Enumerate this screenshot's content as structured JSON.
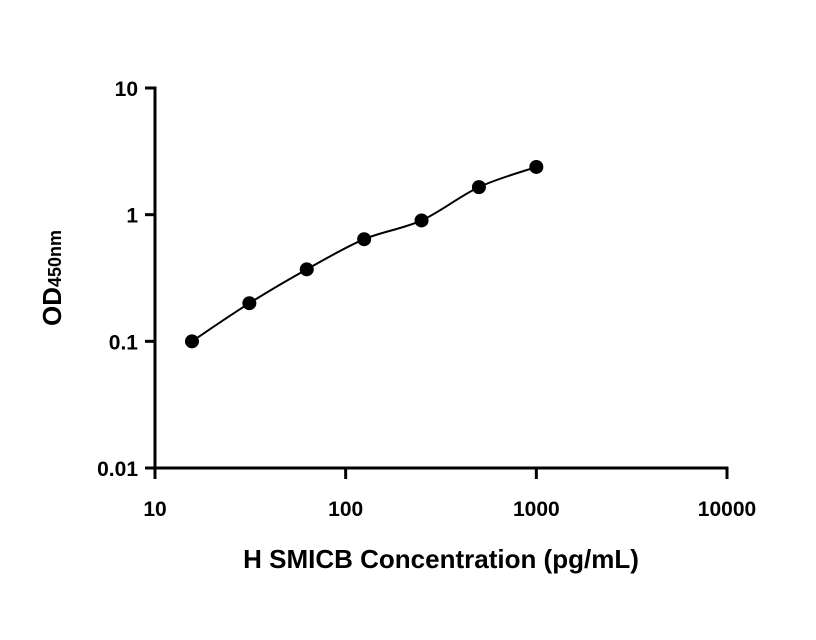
{
  "chart_data": {
    "type": "scatter",
    "xlabel": "H SMICB Concentration (pg/mL)",
    "ylabel_main": "OD",
    "ylabel_sub": "450nm",
    "x_scale": "log",
    "y_scale": "log",
    "xlim": [
      10,
      10000
    ],
    "ylim": [
      0.01,
      10
    ],
    "x_ticks": [
      10,
      100,
      1000,
      10000
    ],
    "x_tick_labels": [
      "10",
      "100",
      "1000",
      "10000"
    ],
    "y_ticks": [
      0.01,
      0.1,
      1,
      10
    ],
    "y_tick_labels": [
      "0.01",
      "0.1",
      "1",
      "10"
    ],
    "grid": false,
    "series": [
      {
        "x": [
          15.625,
          31.25,
          62.5,
          125,
          250,
          500,
          1000
        ],
        "y": [
          0.1,
          0.2,
          0.37,
          0.64,
          0.9,
          1.65,
          2.38
        ],
        "marker": "circle",
        "color": "#000000",
        "fit_curve": true
      }
    ]
  }
}
